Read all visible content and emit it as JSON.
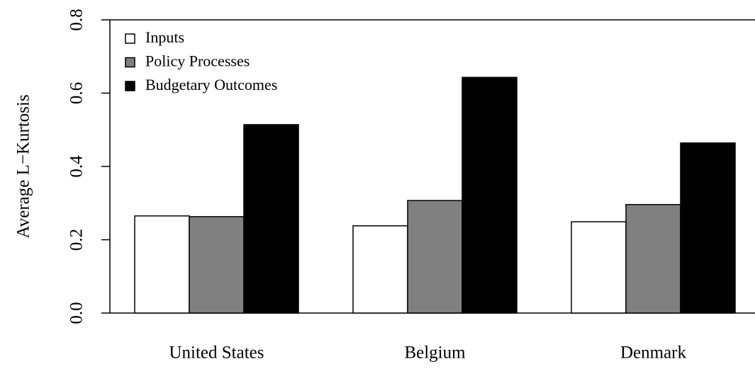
{
  "chart_data": {
    "type": "bar",
    "y_label": "Average L−Kurtosis",
    "categories": [
      "United States",
      "Belgium",
      "Denmark"
    ],
    "series": [
      {
        "name": "Inputs",
        "color": "#ffffff",
        "values": [
          0.265,
          0.238,
          0.249
        ]
      },
      {
        "name": "Policy Processes",
        "color": "#808080",
        "values": [
          0.263,
          0.307,
          0.296
        ]
      },
      {
        "name": "Budgetary Outcomes",
        "color": "#000000",
        "values": [
          0.514,
          0.643,
          0.464
        ]
      }
    ],
    "ylim": [
      0,
      0.8
    ],
    "yticks": [
      {
        "value": 0,
        "label": "0.0"
      },
      0.2,
      0.4,
      0.6,
      0.8
    ],
    "legend": "top-left"
  }
}
